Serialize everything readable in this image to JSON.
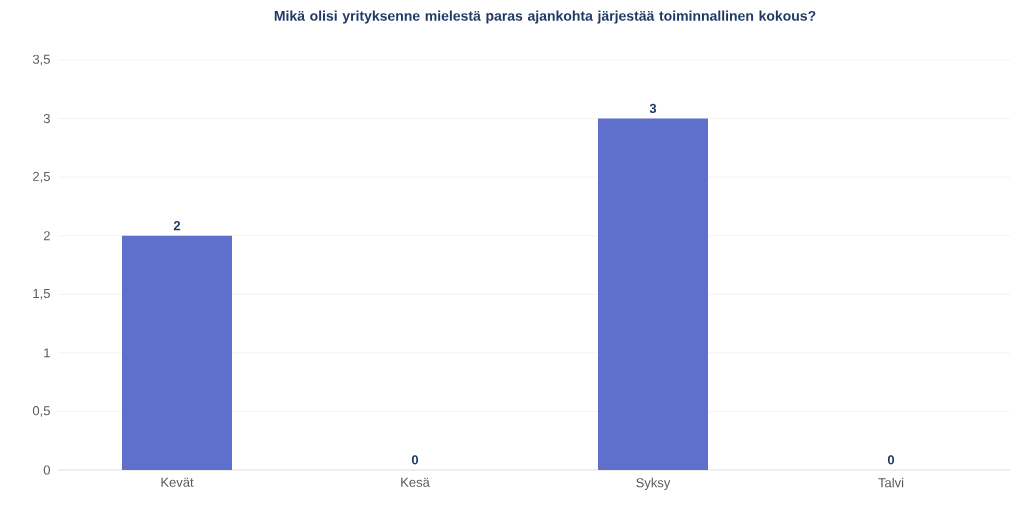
{
  "chart_data": {
    "type": "bar",
    "title": "Mikä olisi yrityksenne mielestä paras ajankohta järjestää toiminnallinen kokous?",
    "categories": [
      "Kevät",
      "Kesä",
      "Syksy",
      "Talvi"
    ],
    "values": [
      2,
      0,
      3,
      0
    ],
    "color": "#5f70cc",
    "ylim": [
      0,
      3.5
    ],
    "yticks": [
      0,
      {
        "value": 0.5,
        "label": "0,5"
      },
      1,
      {
        "value": 1.5,
        "label": "1,5"
      },
      2,
      {
        "value": 2.5,
        "label": "2,5"
      },
      3,
      {
        "value": 3.5,
        "label": "3,5"
      }
    ],
    "grid": "y",
    "data_labels": true
  }
}
